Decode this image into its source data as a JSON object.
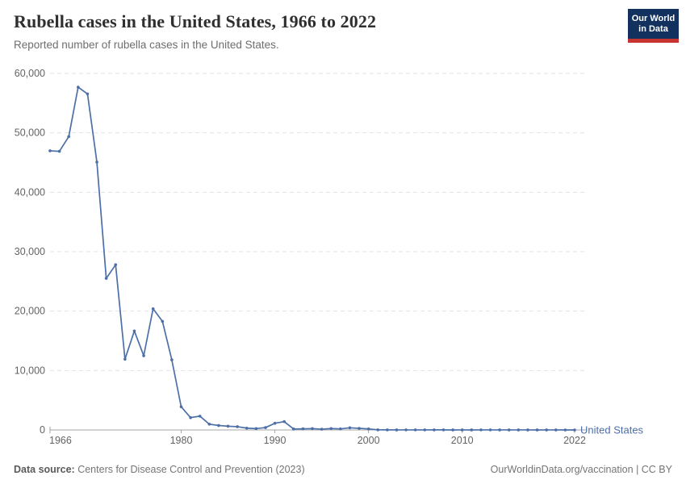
{
  "header": {
    "title": "Rubella cases in the United States, 1966 to 2022",
    "subtitle": "Reported number of rubella cases in the United States.",
    "logo": {
      "line1": "Our World",
      "line2": "in Data",
      "bg_color": "#12315e",
      "stripe_color": "#c5342e"
    }
  },
  "chart_data": {
    "type": "line",
    "title": "Rubella cases in the United States, 1966 to 2022",
    "xlabel": "",
    "ylabel": "",
    "xlim": [
      1966,
      2022
    ],
    "ylim": [
      0,
      60000
    ],
    "grid": "horizontal-dashed",
    "legend": "end-of-line-label",
    "xticks": [
      1966,
      1980,
      1990,
      2000,
      2010,
      2022
    ],
    "yticks": [
      {
        "v": 0,
        "label": "0"
      },
      {
        "v": 10000,
        "label": "10,000"
      },
      {
        "v": 20000,
        "label": "20,000"
      },
      {
        "v": 30000,
        "label": "30,000"
      },
      {
        "v": 40000,
        "label": "40,000"
      },
      {
        "v": 50000,
        "label": "50,000"
      },
      {
        "v": 60000,
        "label": "60,000"
      }
    ],
    "series": [
      {
        "name": "United States",
        "color": "#4c6fa8",
        "x": [
          1966,
          1967,
          1968,
          1969,
          1970,
          1971,
          1972,
          1973,
          1974,
          1975,
          1976,
          1977,
          1978,
          1979,
          1980,
          1981,
          1982,
          1983,
          1984,
          1985,
          1986,
          1987,
          1988,
          1989,
          1990,
          1991,
          1992,
          1993,
          1994,
          1995,
          1996,
          1997,
          1998,
          1999,
          2000,
          2001,
          2002,
          2003,
          2004,
          2005,
          2006,
          2007,
          2008,
          2009,
          2010,
          2011,
          2012,
          2013,
          2014,
          2015,
          2016,
          2017,
          2018,
          2019,
          2020,
          2021,
          2022
        ],
        "values": [
          46975,
          46888,
          49371,
          57686,
          56552,
          45086,
          25507,
          27804,
          11917,
          16652,
          12491,
          20395,
          18269,
          11795,
          3904,
          2077,
          2325,
          970,
          752,
          630,
          551,
          306,
          225,
          396,
          1125,
          1401,
          160,
          192,
          227,
          128,
          238,
          181,
          364,
          267,
          176,
          23,
          18,
          7,
          10,
          11,
          11,
          12,
          16,
          3,
          5,
          4,
          9,
          9,
          6,
          5,
          5,
          7,
          4,
          6,
          6,
          1,
          2
        ]
      }
    ],
    "colors": {
      "grid": "#e2e2e2",
      "axis": "#a5a5a5",
      "tick_label": "#636363",
      "line": "#4c6fa8",
      "entity_label": "#4c6fa8"
    }
  },
  "footer": {
    "source_label": "Data source:",
    "source_text": " Centers for Disease Control and Prevention (2023)",
    "right_text": "OurWorldinData.org/vaccination | CC BY"
  }
}
